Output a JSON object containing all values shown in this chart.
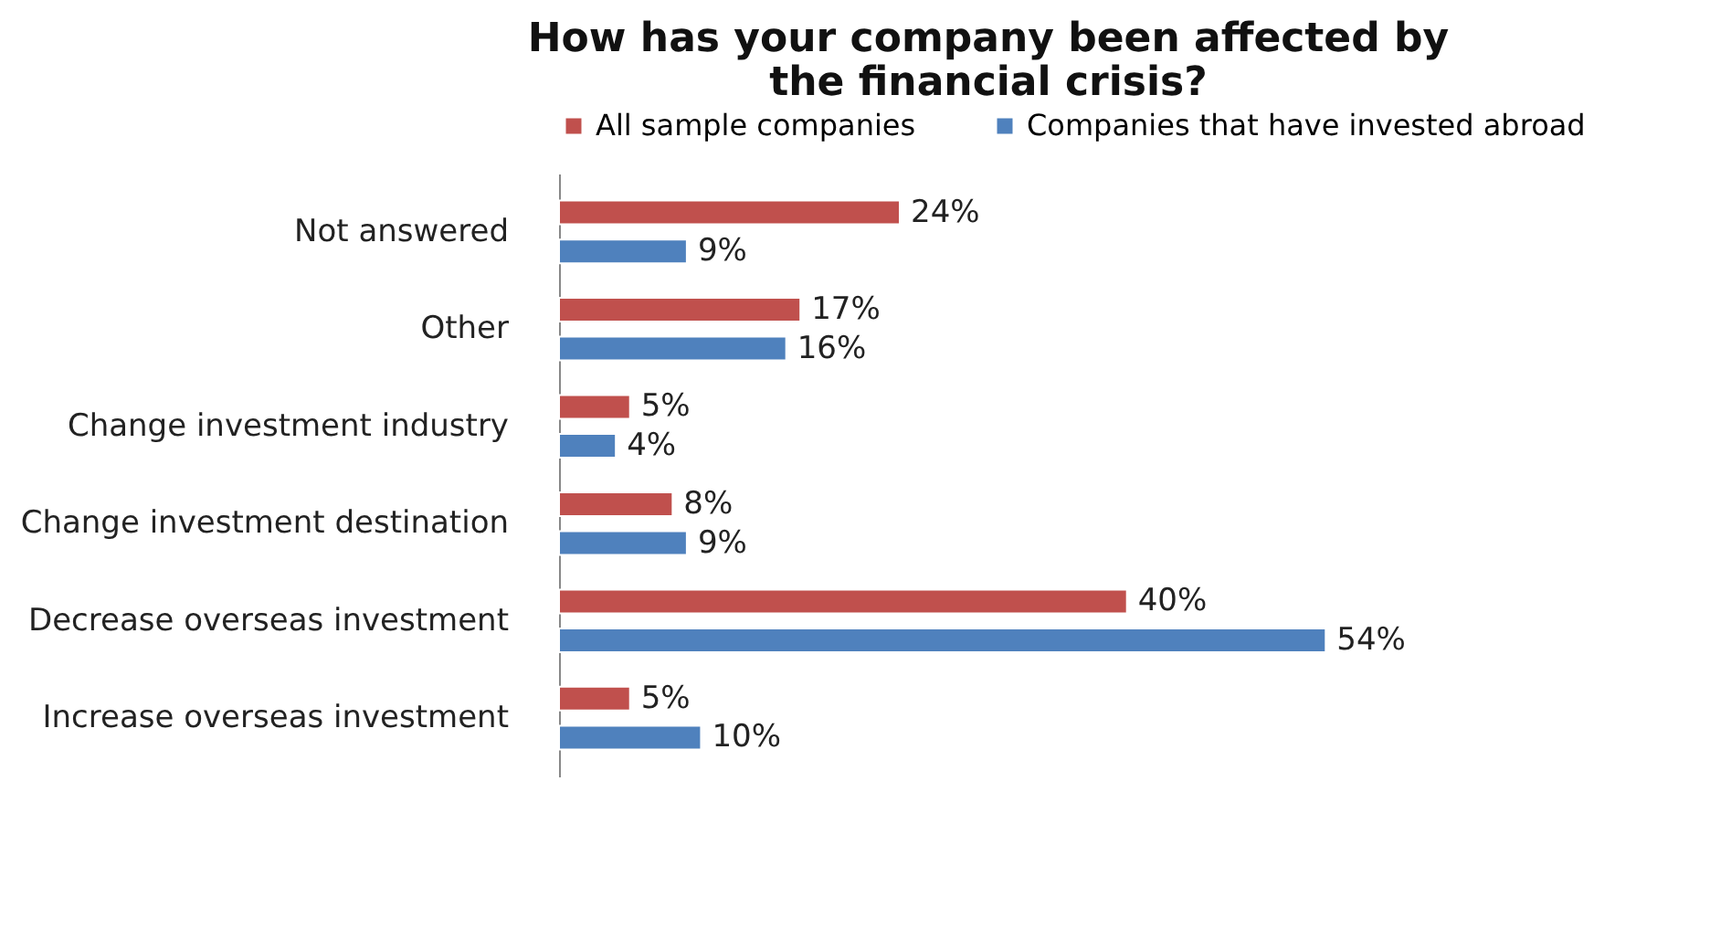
{
  "chart_data": {
    "type": "bar",
    "orientation": "horizontal",
    "title": "How has your company been affected by the financial crisis?",
    "categories": [
      "Not answered",
      "Other",
      "Change investment industry",
      "Change investment destination",
      "Decrease overseas investment",
      "Increase overseas investment"
    ],
    "series": [
      {
        "name": "All sample companies",
        "color": "#c0504d",
        "values": [
          24,
          17,
          5,
          8,
          40,
          5
        ],
        "value_labels": [
          "24%",
          "17%",
          "5%",
          "8%",
          "40%",
          "5%"
        ]
      },
      {
        "name": "Companies that have invested abroad",
        "color": "#4f81bd",
        "values": [
          9,
          16,
          4,
          9,
          54,
          10
        ],
        "value_labels": [
          "9%",
          "16%",
          "4%",
          "9%",
          "54%",
          "10%"
        ]
      }
    ],
    "legend": "top"
  }
}
